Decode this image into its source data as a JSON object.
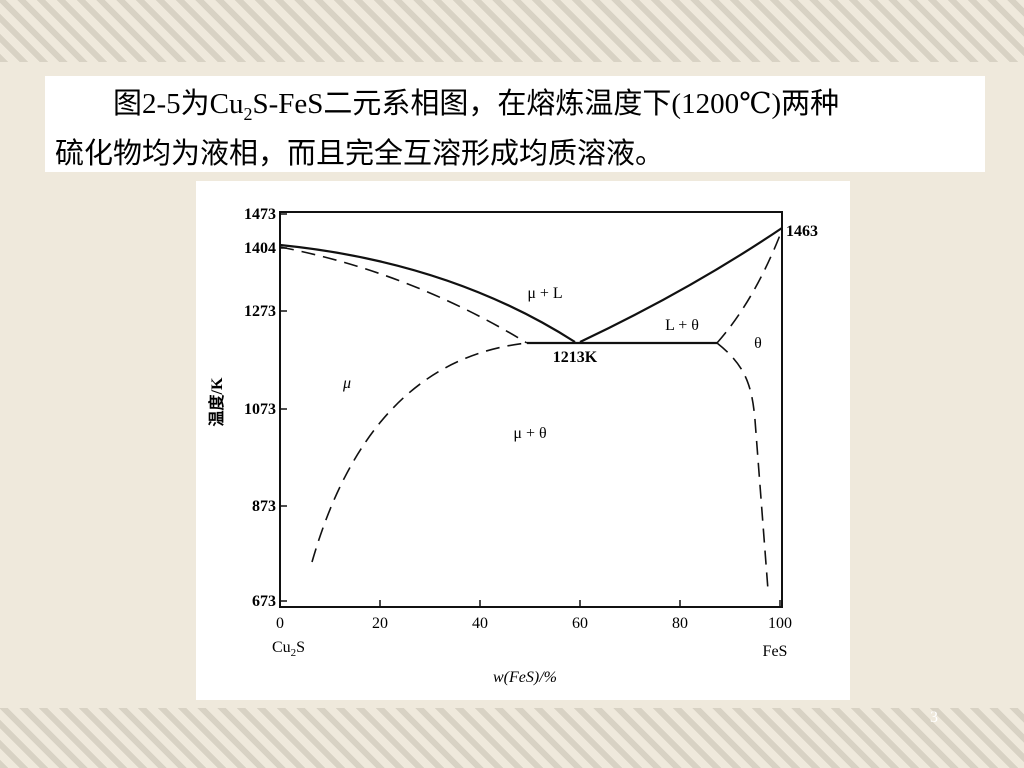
{
  "slide": {
    "text": {
      "line1": [
        "图2-5为Cu",
        "2",
        "S-FeS二元系相图，在熔炼温度下(1200℃)两种"
      ],
      "line2": "硫化物均为液相，而且完全互溶形成均质溶液。"
    },
    "diagram": {
      "y_ticks": [
        "1473",
        "1404",
        "1273",
        "1073",
        "873",
        "673"
      ],
      "x_ticks": [
        "0",
        "20",
        "40",
        "60",
        "80",
        "100"
      ],
      "y_label": "温度/K",
      "x_label": "w(FeS)/%",
      "left_end": [
        "Cu",
        "2",
        "S"
      ],
      "right_end": "FeS",
      "labels": {
        "right_melt": "1463",
        "eutectic": "1213K",
        "mu_l": "μ + L",
        "l_theta": "L + θ",
        "theta": "θ",
        "mu": "μ",
        "mu_theta": "μ + θ"
      }
    },
    "page_number": "3"
  }
}
